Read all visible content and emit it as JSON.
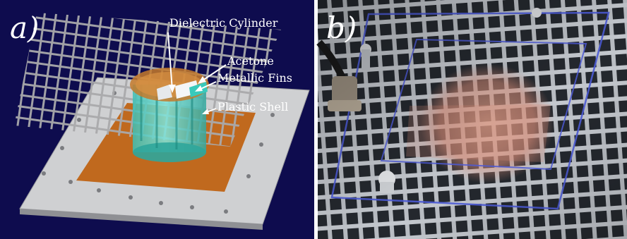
{
  "panels": [
    {
      "label": "a)",
      "annotations": [
        "Dielectric Cylinder",
        "Acetone",
        "Metallic Fins",
        "Plastic Shell"
      ]
    },
    {
      "label": "b)"
    }
  ],
  "colors": {
    "left_background": "#0e0c4e",
    "ground_plate": "#cfd0d2",
    "copper_sheet": "#c0691e",
    "cylinder": "#5bd2c7",
    "acetone": "#2fb1a6",
    "mesh": "#a9a9ab",
    "right_background": "#2b2f36",
    "blue_outline": "#4d5bd8",
    "copper_glow": "#d88d78"
  }
}
